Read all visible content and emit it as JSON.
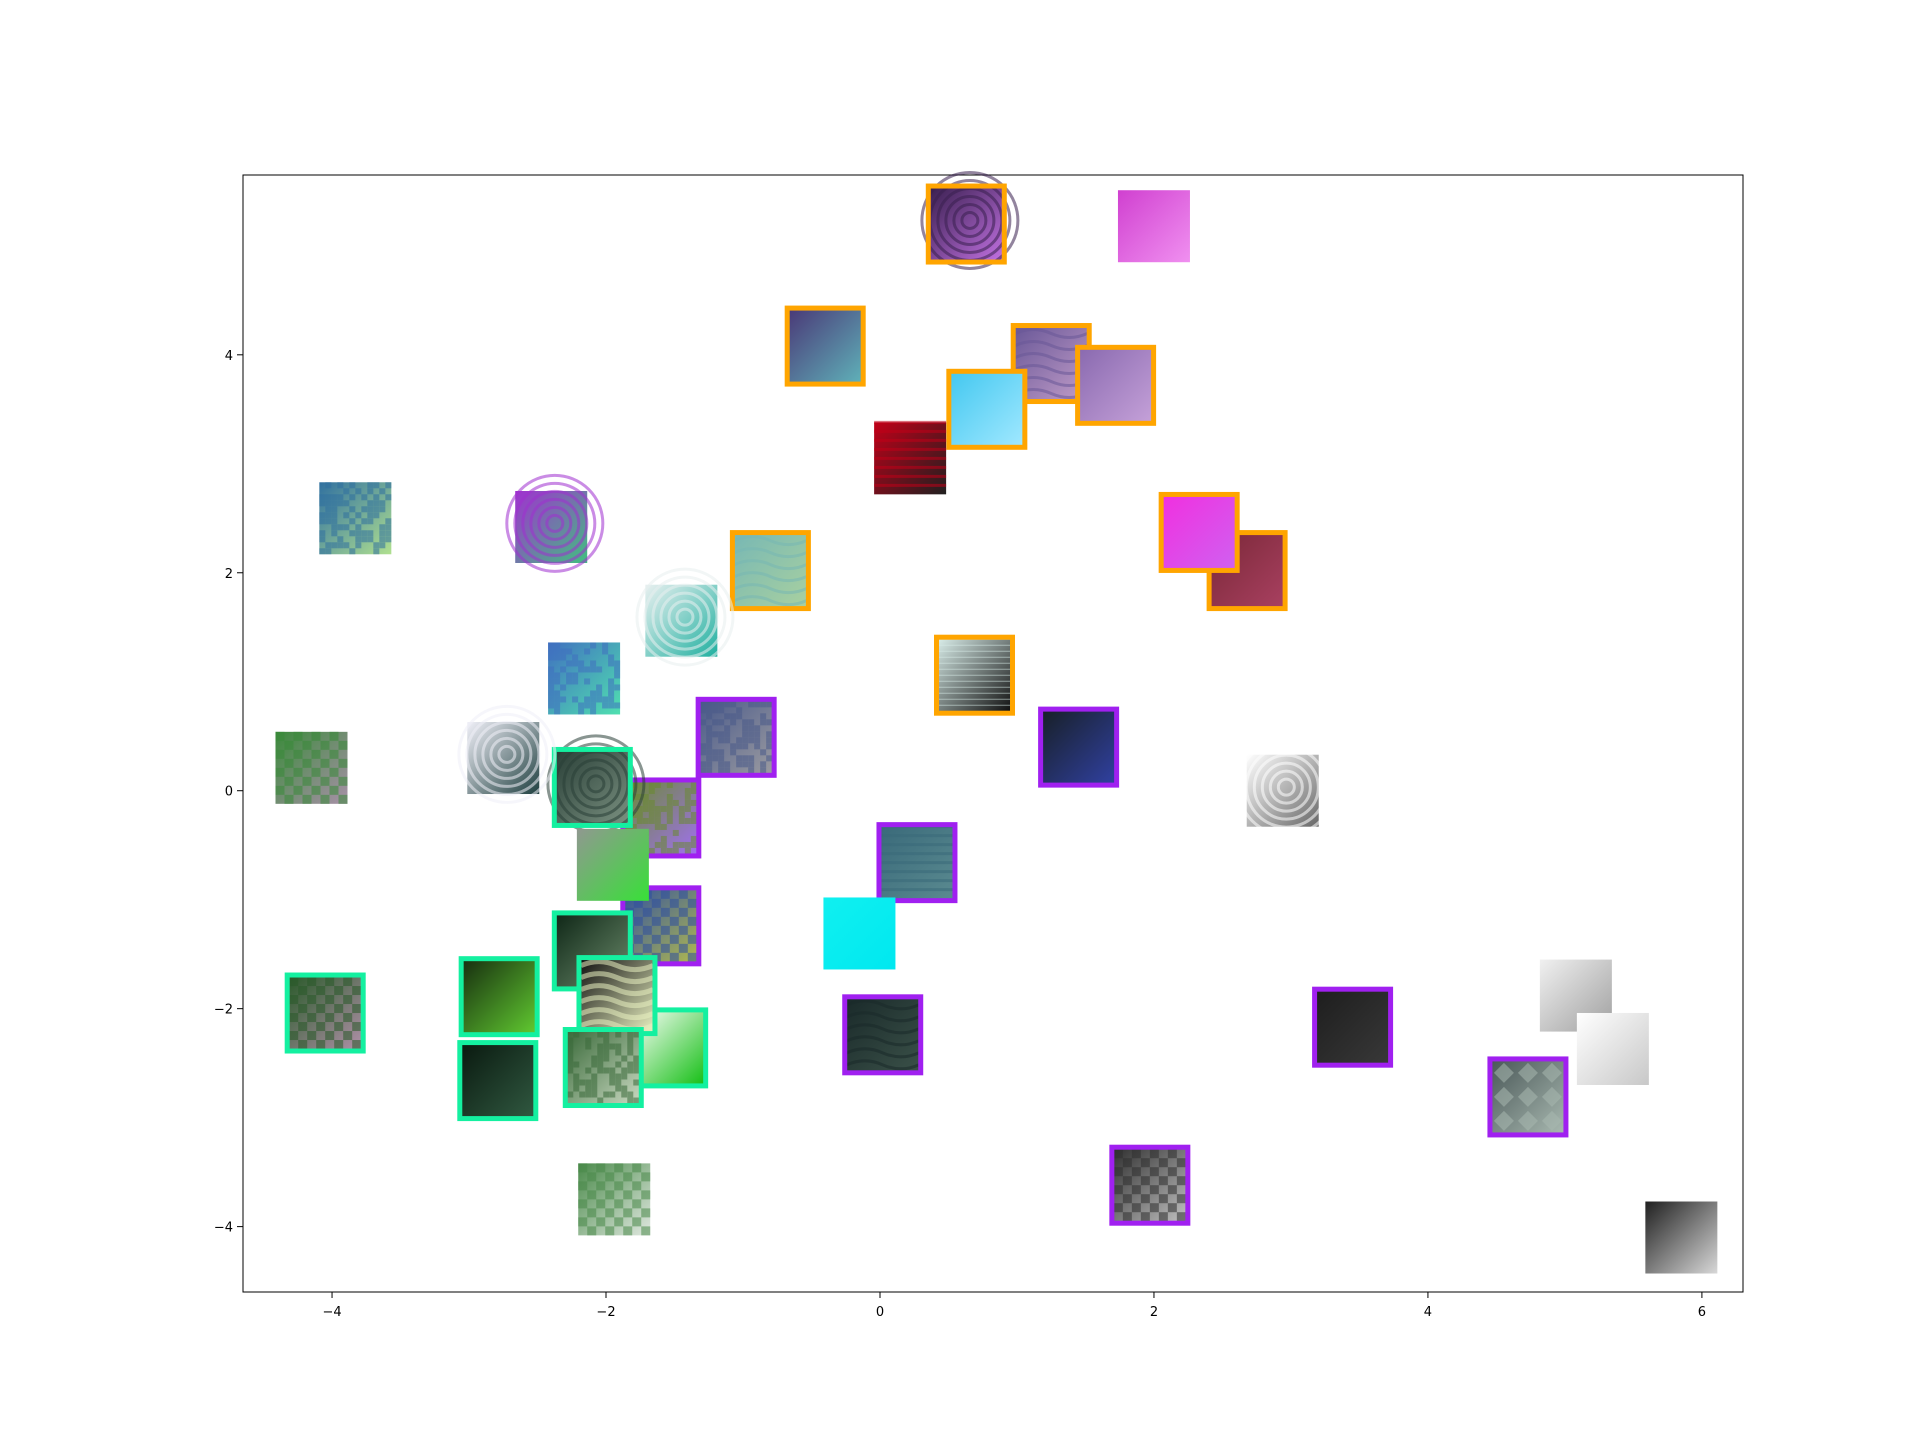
{
  "chart_data": {
    "type": "scatter",
    "title": "",
    "xlabel": "",
    "ylabel": "",
    "xlim": [
      -4.65,
      6.3
    ],
    "ylim": [
      -4.6,
      5.65
    ],
    "grid": false,
    "legend": "none",
    "x_ticks": [
      -4,
      -2,
      0,
      2,
      4,
      6
    ],
    "x_tick_labels": [
      "−4",
      "−2",
      "0",
      "2",
      "4",
      "6"
    ],
    "y_ticks": [
      -4,
      -2,
      0,
      2,
      4
    ],
    "y_tick_labels": [
      "−4",
      "−2",
      "0",
      "2",
      "4"
    ],
    "border_colors": {
      "orange": "#ffa500",
      "purple": "#a020f0",
      "green": "#14f0a0"
    },
    "points": [
      {
        "x": 0.63,
        "y": 5.2,
        "border": "orange",
        "theme": "spiral",
        "c1": "#3a2050",
        "c2": "#c070e0"
      },
      {
        "x": -0.4,
        "y": 4.08,
        "border": "orange",
        "theme": "mosaic",
        "c1": "#4a3a78",
        "c2": "#5fb0b8"
      },
      {
        "x": 1.25,
        "y": 3.92,
        "border": "orange",
        "theme": "folds",
        "c1": "#6a5898",
        "c2": "#c09cc8"
      },
      {
        "x": 1.72,
        "y": 3.72,
        "border": "orange",
        "theme": "smooth",
        "c1": "#8a6ab0",
        "c2": "#c4a0d8"
      },
      {
        "x": 0.78,
        "y": 3.5,
        "border": "orange",
        "theme": "smooth",
        "c1": "#44c8f0",
        "c2": "#a0e8ff"
      },
      {
        "x": -0.8,
        "y": 2.02,
        "border": "orange",
        "theme": "waves",
        "c1": "#78b8b4",
        "c2": "#a8d0a0"
      },
      {
        "x": 2.68,
        "y": 2.02,
        "border": "orange",
        "theme": "smooth",
        "c1": "#7a2838",
        "c2": "#a84060"
      },
      {
        "x": 2.33,
        "y": 2.37,
        "border": "orange",
        "theme": "smooth",
        "c1": "#f030e0",
        "c2": "#d060f0"
      },
      {
        "x": 0.69,
        "y": 1.06,
        "border": "orange",
        "theme": "lines",
        "c1": "#d8ece8",
        "c2": "#101010"
      },
      {
        "x": -1.05,
        "y": 0.49,
        "border": "purple",
        "theme": "noise",
        "c1": "#4a5a8a",
        "c2": "#9a9aa0"
      },
      {
        "x": 1.45,
        "y": 0.4,
        "border": "purple",
        "theme": "smooth",
        "c1": "#182028",
        "c2": "#3040a0"
      },
      {
        "x": -1.6,
        "y": -0.25,
        "border": "purple",
        "theme": "noise",
        "c1": "#6a8a30",
        "c2": "#a070f0"
      },
      {
        "x": 0.27,
        "y": -0.66,
        "border": "purple",
        "theme": "stripes",
        "c1": "#3a6a7a",
        "c2": "#5a8a90"
      },
      {
        "x": -1.6,
        "y": -1.24,
        "border": "purple",
        "theme": "checker",
        "c1": "#3050a0",
        "c2": "#b0b850"
      },
      {
        "x": 0.02,
        "y": -2.24,
        "border": "purple",
        "theme": "waves",
        "c1": "#1a2a2a",
        "c2": "#3a5048"
      },
      {
        "x": 3.45,
        "y": -2.17,
        "border": "purple",
        "theme": "smooth",
        "c1": "#1e1e1e",
        "c2": "#383838"
      },
      {
        "x": 4.73,
        "y": -2.81,
        "border": "purple",
        "theme": "diamonds",
        "c1": "#4a5858",
        "c2": "#a8b8b0"
      },
      {
        "x": 1.97,
        "y": -3.62,
        "border": "purple",
        "theme": "checker",
        "c1": "#303030",
        "c2": "#c0c0c0"
      },
      {
        "x": -2.1,
        "y": 0.03,
        "border": "green",
        "theme": "spiral",
        "c1": "#2a4038",
        "c2": "#7a9080"
      },
      {
        "x": -1.55,
        "y": -2.36,
        "border": "green",
        "theme": "smooth",
        "c1": "#ffffff",
        "c2": "#18c018"
      },
      {
        "x": -2.1,
        "y": -1.47,
        "border": "green",
        "theme": "smooth",
        "c1": "#102818",
        "c2": "#6a8a6a"
      },
      {
        "x": -2.78,
        "y": -1.89,
        "border": "green",
        "theme": "smooth",
        "c1": "#183010",
        "c2": "#60c830"
      },
      {
        "x": -2.79,
        "y": -2.66,
        "border": "green",
        "theme": "smooth",
        "c1": "#0a1a10",
        "c2": "#305840"
      },
      {
        "x": -1.92,
        "y": -1.88,
        "border": "green",
        "theme": "bands",
        "c1": "#101010",
        "c2": "#e8f0c0"
      },
      {
        "x": -2.02,
        "y": -2.54,
        "border": "green",
        "theme": "noise",
        "c1": "#3a6a3a",
        "c2": "#c8d8c0"
      },
      {
        "x": -4.05,
        "y": -2.04,
        "border": "green",
        "theme": "checker",
        "c1": "#2a5a2a",
        "c2": "#b090a8"
      },
      {
        "x": 2.0,
        "y": 5.18,
        "border": "none",
        "theme": "smooth",
        "c1": "#d040d0",
        "c2": "#f090f0"
      },
      {
        "x": 0.22,
        "y": 3.05,
        "border": "none",
        "theme": "stripes",
        "c1": "#c00018",
        "c2": "#202020"
      },
      {
        "x": -3.83,
        "y": 2.5,
        "border": "none",
        "theme": "noise",
        "c1": "#3070a0",
        "c2": "#b0e090"
      },
      {
        "x": -2.4,
        "y": 2.42,
        "border": "none",
        "theme": "spiral",
        "c1": "#a030d0",
        "c2": "#40c080"
      },
      {
        "x": -1.45,
        "y": 1.56,
        "border": "none",
        "theme": "spiral",
        "c1": "#e8f0f0",
        "c2": "#20b0a0"
      },
      {
        "x": -2.16,
        "y": 1.03,
        "border": "none",
        "theme": "noise",
        "c1": "#4070c0",
        "c2": "#50e0b0"
      },
      {
        "x": -2.75,
        "y": 0.3,
        "border": "none",
        "theme": "spiral",
        "c1": "#f0f0f8",
        "c2": "#204040"
      },
      {
        "x": -4.15,
        "y": 0.21,
        "border": "none",
        "theme": "checker",
        "c1": "#3a8a3a",
        "c2": "#a890a8"
      },
      {
        "x": 2.94,
        "y": 0.0,
        "border": "none",
        "theme": "spiral",
        "c1": "#ffffff",
        "c2": "#686868"
      },
      {
        "x": -1.95,
        "y": -0.68,
        "border": "none",
        "theme": "smooth",
        "c1": "#909890",
        "c2": "#38e038"
      },
      {
        "x": -0.15,
        "y": -1.31,
        "border": "none",
        "theme": "smooth",
        "c1": "#10f0f0",
        "c2": "#00e8f0"
      },
      {
        "x": 5.08,
        "y": -1.88,
        "border": "none",
        "theme": "smooth",
        "c1": "#f0f0f0",
        "c2": "#a0a0a0"
      },
      {
        "x": 5.35,
        "y": -2.37,
        "border": "none",
        "theme": "smooth",
        "c1": "#ffffff",
        "c2": "#c8c8c8"
      },
      {
        "x": -1.94,
        "y": -3.75,
        "border": "none",
        "theme": "checker",
        "c1": "#4a8a4a",
        "c2": "#e0e8e0"
      },
      {
        "x": 5.85,
        "y": -4.1,
        "border": "none",
        "theme": "smooth",
        "c1": "#202020",
        "c2": "#d8d8d8"
      }
    ]
  }
}
